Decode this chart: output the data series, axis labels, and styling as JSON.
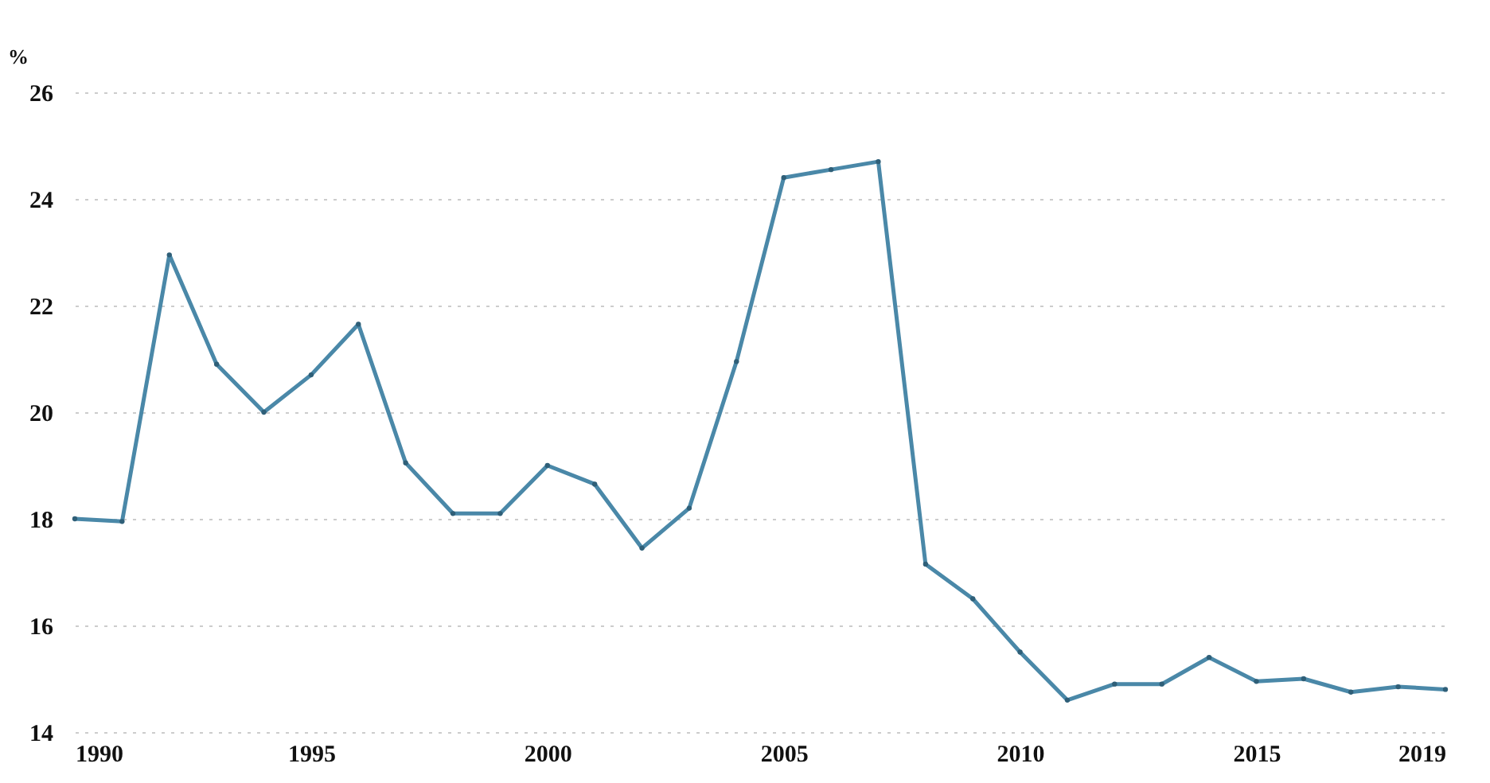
{
  "chart_data": {
    "type": "line",
    "ylabel": "%",
    "x": [
      1990,
      1991,
      1992,
      1993,
      1994,
      1995,
      1996,
      1997,
      1998,
      1999,
      2000,
      2001,
      2002,
      2003,
      2004,
      2005,
      2006,
      2007,
      2008,
      2009,
      2010,
      2011,
      2012,
      2013,
      2014,
      2015,
      2016,
      2017,
      2018,
      2019
    ],
    "series": [
      {
        "color": "#4a88a8",
        "values": [
          18.0,
          17.95,
          22.95,
          20.9,
          20.0,
          20.7,
          21.65,
          19.05,
          18.1,
          18.1,
          19.0,
          18.65,
          17.45,
          18.2,
          20.95,
          24.4,
          24.55,
          24.7,
          17.15,
          16.5,
          15.5,
          14.6,
          14.9,
          14.9,
          15.4,
          14.95,
          15.0,
          14.75,
          14.85,
          14.8
        ]
      }
    ],
    "xlim": [
      1990,
      2019
    ],
    "xticks": [
      1990,
      1995,
      2000,
      2005,
      2010,
      2015,
      2019
    ],
    "ylim": [
      14,
      26
    ],
    "yticks": [
      14,
      16,
      18,
      20,
      22,
      24,
      26
    ],
    "grid": "y",
    "marker": "circle",
    "line_style": "solid"
  }
}
